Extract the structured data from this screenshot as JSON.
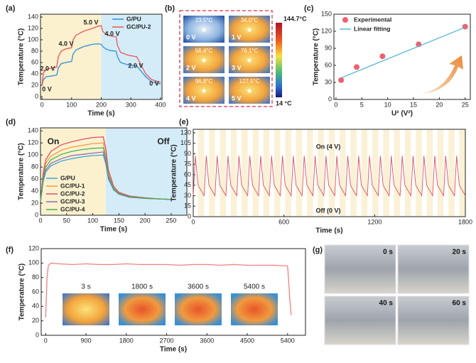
{
  "panel_labels": [
    "(a)",
    "(b)",
    "(c)",
    "(d)",
    "(e)",
    "(f)",
    "(g)"
  ],
  "thermal_images": {
    "temperatures": [
      "23.5°C",
      "34.0°C",
      "56.4°C",
      "76.1°C",
      "96.8°C",
      "127.5°C"
    ],
    "voltages": [
      "0 V",
      "1 V",
      "2 V",
      "3 V",
      "4 V",
      "5 V"
    ],
    "colorbar_max": "144.7°C",
    "colorbar_min": "14 °C"
  },
  "inset_labels": [
    "3 s",
    "1800 s",
    "3600 s",
    "5400 s"
  ],
  "photo_labels": [
    "0 s",
    "20 s",
    "40 s",
    "60 s"
  ],
  "chart_data": [
    {
      "type": "line",
      "xlabel": "Time (s)",
      "ylabel": "Temperature (°C)",
      "xlim": [
        -5,
        405
      ],
      "ylim": [
        -5,
        145
      ],
      "xticks": [
        0,
        100,
        200,
        300,
        400
      ],
      "yticks": [
        0,
        20,
        40,
        60,
        80,
        100,
        120,
        140
      ],
      "legend": "upper right",
      "series": [
        {
          "name": "G/PU",
          "color": "#2f8fd8",
          "x": [
            0,
            5,
            15,
            30,
            50,
            55,
            65,
            80,
            100,
            105,
            115,
            140,
            170,
            190,
            200,
            205,
            215,
            230,
            250,
            255,
            265,
            290,
            320,
            350,
            370,
            400
          ],
          "values": [
            20,
            30,
            35,
            36,
            38,
            50,
            58,
            60,
            62,
            75,
            82,
            88,
            92,
            93,
            92,
            88,
            84,
            81,
            80,
            70,
            60,
            56,
            54,
            35,
            26,
            22
          ]
        },
        {
          "name": "GC/PU-2",
          "color": "#e8575d",
          "x": [
            0,
            5,
            15,
            30,
            50,
            55,
            65,
            80,
            100,
            105,
            115,
            140,
            170,
            190,
            200,
            205,
            215,
            230,
            250,
            255,
            265,
            290,
            320,
            350,
            370,
            400
          ],
          "values": [
            20,
            42,
            48,
            50,
            52,
            70,
            80,
            84,
            86,
            100,
            108,
            115,
            120,
            124,
            125,
            115,
            110,
            107,
            105,
            90,
            78,
            73,
            70,
            40,
            30,
            25
          ]
        }
      ],
      "annotations": [
        "0 V",
        "2.0 V",
        "4.0 V",
        "5.0 V",
        "4.0 V",
        "2.0 V",
        "0 V"
      ]
    },
    {
      "type": "scatter",
      "xlabel": "U² (V²)",
      "ylabel": "Temperature (°C)",
      "xlim": [
        -0.4,
        26
      ],
      "ylim": [
        0,
        150
      ],
      "xticks": [
        0,
        5,
        10,
        15,
        20,
        25
      ],
      "yticks": [
        0,
        30,
        60,
        90,
        120,
        150
      ],
      "legend": "upper left",
      "series": [
        {
          "name": "Experimental",
          "type": "scatter",
          "color": "#f06070",
          "x": [
            1,
            4,
            9,
            16,
            25
          ],
          "values": [
            34,
            57,
            76,
            97,
            128
          ]
        },
        {
          "name": "Linear fitting",
          "type": "line",
          "color": "#5bb8d8",
          "x": [
            1,
            25
          ],
          "values": [
            38,
            127
          ]
        }
      ]
    },
    {
      "type": "line",
      "xlabel": "Time (s)",
      "ylabel": "Temperature (°C)",
      "xlim": [
        0,
        280
      ],
      "ylim": [
        0,
        145
      ],
      "xticks": [
        0,
        50,
        100,
        150,
        200,
        250
      ],
      "yticks": [
        0,
        20,
        40,
        60,
        80,
        100,
        120,
        140
      ],
      "legend": "lower left",
      "x": [
        0,
        5,
        10,
        20,
        40,
        60,
        80,
        100,
        120,
        125,
        130,
        140,
        150,
        170,
        200,
        230,
        250
      ],
      "series": [
        {
          "name": "G/PU",
          "color": "#3da5d9",
          "values": [
            22,
            55,
            72,
            82,
            90,
            94,
            97,
            99,
            100,
            85,
            60,
            42,
            35,
            30,
            28,
            27,
            26
          ]
        },
        {
          "name": "GC/PU-1",
          "color": "#f39c4a",
          "values": [
            22,
            65,
            86,
            98,
            108,
            113,
            116,
            119,
            120,
            100,
            70,
            46,
            37,
            31,
            28,
            27,
            26
          ]
        },
        {
          "name": "GC/PU-2",
          "color": "#e0506a",
          "values": [
            22,
            70,
            92,
            106,
            117,
            122,
            126,
            129,
            130,
            110,
            75,
            48,
            38,
            32,
            29,
            27,
            26
          ]
        },
        {
          "name": "GC/PU-3",
          "color": "#8a6bbd",
          "values": [
            22,
            58,
            75,
            86,
            94,
            99,
            101,
            103,
            105,
            88,
            62,
            43,
            35,
            30,
            28,
            27,
            26
          ]
        },
        {
          "name": "GC/PU-4",
          "color": "#4caf50",
          "values": [
            22,
            62,
            80,
            92,
            101,
            106,
            109,
            111,
            112,
            95,
            66,
            44,
            36,
            31,
            28,
            27,
            26
          ]
        }
      ],
      "annotations": [
        "On",
        "Off"
      ]
    },
    {
      "type": "line",
      "xlabel": "Time (s)",
      "ylabel": "Temperature (°C)",
      "xlim": [
        0,
        1800
      ],
      "ylim": [
        0,
        125
      ],
      "xticks": [
        0,
        600,
        1200,
        1800
      ],
      "yticks": [
        0,
        15,
        30,
        45,
        60,
        75,
        90,
        105,
        120
      ],
      "series": [
        {
          "color": "#e05060",
          "x": [
            0,
            14,
            32,
            72,
            86,
            104,
            144,
            158,
            176,
            216,
            230,
            248,
            288,
            302,
            320,
            360,
            374,
            392,
            432,
            446,
            464,
            504,
            518,
            536,
            576,
            590,
            608,
            648,
            662,
            680,
            720,
            734,
            752,
            792,
            806,
            824,
            864,
            878,
            896,
            936,
            950,
            968,
            1008,
            1022,
            1040,
            1080,
            1094,
            1112,
            1152,
            1166,
            1184,
            1224,
            1238,
            1256,
            1296,
            1310,
            1328,
            1368,
            1382,
            1400,
            1440,
            1454,
            1472,
            1512,
            1526,
            1544,
            1584,
            1598,
            1616,
            1656,
            1670,
            1688,
            1728,
            1742,
            1760,
            1800
          ],
          "values": [
            30,
            87,
            45,
            30,
            87,
            45,
            30,
            87,
            45,
            30,
            87,
            45,
            30,
            87,
            45,
            30,
            87,
            45,
            30,
            87,
            45,
            30,
            87,
            45,
            30,
            87,
            45,
            30,
            87,
            45,
            30,
            87,
            45,
            30,
            87,
            45,
            30,
            87,
            45,
            30,
            87,
            45,
            30,
            87,
            45,
            30,
            87,
            45,
            30,
            87,
            45,
            30,
            87,
            45,
            30,
            87,
            45,
            30,
            87,
            45,
            30,
            87,
            45,
            30,
            87,
            45,
            30,
            87,
            45,
            30,
            87,
            45,
            30,
            87,
            45,
            30
          ]
        }
      ],
      "annotations": [
        "On (4 V)",
        "Off (0 V)"
      ]
    },
    {
      "type": "line",
      "xlabel": "Time (s)",
      "ylabel": "Temperature (°C)",
      "xlim": [
        -100,
        5800
      ],
      "ylim": [
        0,
        120
      ],
      "xticks": [
        0,
        900,
        1800,
        2700,
        3600,
        4500,
        5400
      ],
      "yticks": [
        0,
        20,
        40,
        60,
        80,
        100,
        120
      ],
      "series": [
        {
          "color": "#f08080",
          "x": [
            0,
            30,
            60,
            120,
            300,
            600,
            900,
            1200,
            1500,
            1800,
            2100,
            2400,
            2700,
            3000,
            3300,
            3600,
            3900,
            4200,
            4500,
            4800,
            5100,
            5400,
            5420,
            5450,
            5480
          ],
          "values": [
            25,
            80,
            97,
            100,
            99,
            98,
            99,
            98,
            98,
            99,
            98,
            98,
            98,
            97,
            98,
            98,
            97,
            98,
            97,
            97,
            97,
            96,
            80,
            50,
            28
          ]
        }
      ]
    }
  ]
}
